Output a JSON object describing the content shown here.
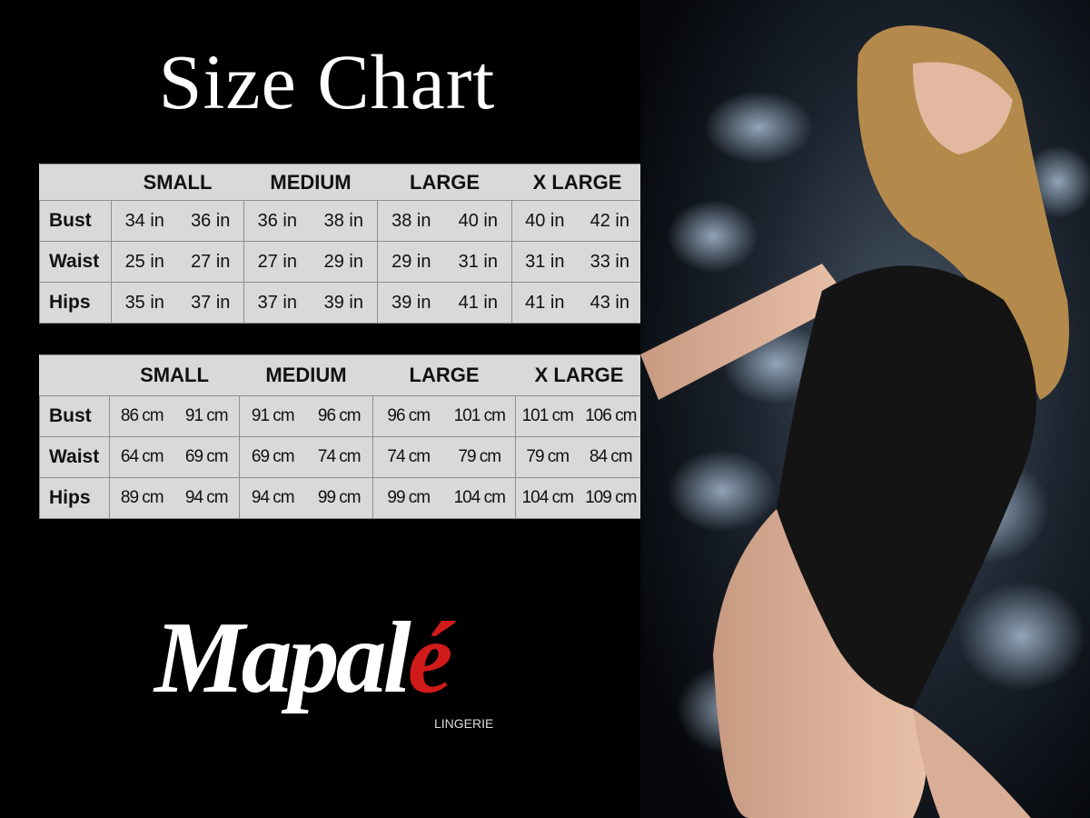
{
  "title": "Size Chart",
  "inches_table": {
    "headers": [
      "",
      "SMALL",
      "MEDIUM",
      "LARGE",
      "X LARGE"
    ],
    "rows": [
      {
        "label": "Bust",
        "values": [
          "34 in",
          "36 in",
          "36 in",
          "38 in",
          "38 in",
          "40 in",
          "40 in",
          "42 in"
        ]
      },
      {
        "label": "Waist",
        "values": [
          "25 in",
          "27 in",
          "27 in",
          "29 in",
          "29 in",
          "31 in",
          "31 in",
          "33 in"
        ]
      },
      {
        "label": "Hips",
        "values": [
          "35 in",
          "37 in",
          "37 in",
          "39 in",
          "39 in",
          "41 in",
          "41 in",
          "43 in"
        ]
      }
    ]
  },
  "cm_table": {
    "headers": [
      "",
      "SMALL",
      "MEDIUM",
      "LARGE",
      "X LARGE"
    ],
    "rows": [
      {
        "label": "Bust",
        "values": [
          "86 cm",
          "91 cm",
          "91 cm",
          "96 cm",
          "96 cm",
          "101 cm",
          "101 cm",
          "106 cm"
        ]
      },
      {
        "label": "Waist",
        "values": [
          "64 cm",
          "69 cm",
          "69 cm",
          "74 cm",
          "74 cm",
          "79  cm",
          "79 cm",
          "84 cm"
        ]
      },
      {
        "label": "Hips",
        "values": [
          "89 cm",
          "94 cm",
          "94 cm",
          "99 cm",
          "99 cm",
          "104 cm",
          "104 cm",
          "109 cm"
        ]
      }
    ]
  },
  "logo": {
    "brand": "Mapal",
    "accent_letter": "é",
    "tagline": "LINGERIE",
    "accent_color": "#d11a1a"
  }
}
